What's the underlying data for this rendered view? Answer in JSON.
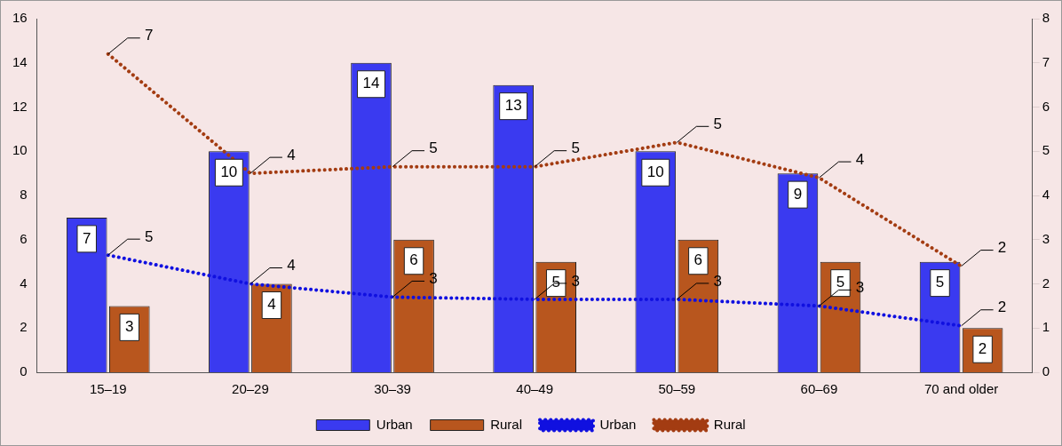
{
  "chart_data": {
    "type": "bar",
    "categories": [
      "15–19",
      "20–29",
      "30–39",
      "40–49",
      "50–59",
      "60–69",
      "70 and older"
    ],
    "series": [
      {
        "name": "Urban",
        "color": "#3a3af0",
        "values": [
          7,
          10,
          14,
          13,
          10,
          9,
          5
        ],
        "value_labels": [
          "7",
          "10",
          "14",
          "13",
          "10",
          "9",
          "5"
        ]
      },
      {
        "name": "Rural",
        "color": "#b8561e",
        "values": [
          3,
          4,
          6,
          5,
          6,
          5,
          2
        ],
        "value_labels": [
          "3",
          "4",
          "6",
          "5",
          "6",
          "5",
          "2"
        ]
      },
      {
        "name": "Urban",
        "type": "line",
        "color": "#1010e0",
        "line_style": "dotted",
        "values": [
          5.3,
          4.0,
          3.4,
          3.3,
          3.3,
          3.0,
          2.1
        ],
        "value_labels": [
          "5",
          "4",
          "3",
          "3",
          "3",
          "3",
          "2"
        ]
      },
      {
        "name": "Rural",
        "type": "line",
        "axis": "y2",
        "color": "#a33c12",
        "line_style": "dotted",
        "values": [
          7.2,
          4.5,
          4.65,
          4.65,
          5.2,
          4.4,
          2.4
        ],
        "value_labels": [
          "7",
          "4",
          "5",
          "5",
          "5",
          "4",
          "2"
        ]
      }
    ],
    "ylim": [
      0,
      16
    ],
    "yticks": [
      0,
      2,
      4,
      6,
      8,
      10,
      12,
      14,
      16
    ],
    "y2lim": [
      0,
      8
    ],
    "y2ticks": [
      0,
      1,
      2,
      3,
      4,
      5,
      6,
      7,
      8
    ],
    "grid": false,
    "legend": "bottom",
    "marker": "none"
  }
}
